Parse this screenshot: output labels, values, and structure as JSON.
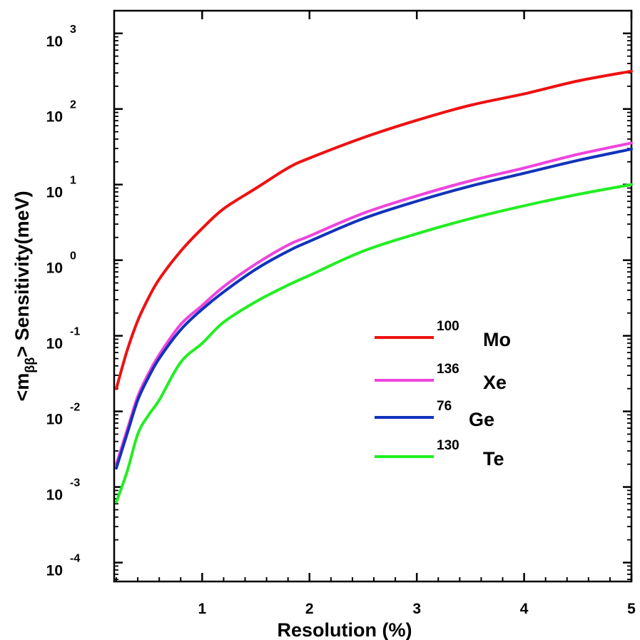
{
  "chart_data": {
    "type": "line",
    "xlabel": "Resolution (%)",
    "ylabel": {
      "prefix": "<m",
      "subscript": "ββ",
      "suffix": "> Sensitivity(meV)"
    },
    "xlim": [
      0.18,
      5.0
    ],
    "ylim_log10": [
      -4.25,
      3.3
    ],
    "y_scale": "log",
    "x_ticks": [
      {
        "value": 1,
        "label": "1"
      },
      {
        "value": 2,
        "label": "2"
      },
      {
        "value": 3,
        "label": "3"
      },
      {
        "value": 4,
        "label": "4"
      },
      {
        "value": 5,
        "label": "5"
      }
    ],
    "y_ticks": [
      {
        "exp": -4,
        "base": "10",
        "sup": "-4"
      },
      {
        "exp": -3,
        "base": "10",
        "sup": "-3"
      },
      {
        "exp": -2,
        "base": "10",
        "sup": "-2"
      },
      {
        "exp": -1,
        "base": "10",
        "sup": "-1"
      },
      {
        "exp": 0,
        "base": "10",
        "sup": "0"
      },
      {
        "exp": 1,
        "base": "10",
        "sup": "1"
      },
      {
        "exp": 2,
        "base": "10",
        "sup": "2"
      },
      {
        "exp": 3,
        "base": "10",
        "sup": "3"
      }
    ],
    "grid": false,
    "legend_placement": "lower-right",
    "series": [
      {
        "name": "Mo",
        "mass": "100",
        "color": "#ee1111",
        "points": [
          [
            0.2,
            -1.7
          ],
          [
            0.3,
            -1.2
          ],
          [
            0.4,
            -0.8
          ],
          [
            0.5,
            -0.5
          ],
          [
            0.6,
            -0.25
          ],
          [
            0.8,
            0.12
          ],
          [
            1.0,
            0.42
          ],
          [
            1.2,
            0.68
          ],
          [
            1.5,
            0.95
          ],
          [
            1.8,
            1.22
          ],
          [
            2.0,
            1.35
          ],
          [
            2.5,
            1.62
          ],
          [
            3.0,
            1.85
          ],
          [
            3.5,
            2.05
          ],
          [
            4.0,
            2.2
          ],
          [
            4.5,
            2.37
          ],
          [
            5.0,
            2.5
          ]
        ]
      },
      {
        "name": "Xe",
        "mass": "136",
        "color": "#ee44dd",
        "points": [
          [
            0.2,
            -2.7
          ],
          [
            0.3,
            -2.25
          ],
          [
            0.4,
            -1.8
          ],
          [
            0.5,
            -1.5
          ],
          [
            0.6,
            -1.25
          ],
          [
            0.8,
            -0.85
          ],
          [
            1.0,
            -0.6
          ],
          [
            1.2,
            -0.35
          ],
          [
            1.5,
            -0.05
          ],
          [
            1.8,
            0.2
          ],
          [
            2.0,
            0.32
          ],
          [
            2.5,
            0.62
          ],
          [
            3.0,
            0.85
          ],
          [
            3.5,
            1.05
          ],
          [
            4.0,
            1.22
          ],
          [
            4.5,
            1.4
          ],
          [
            5.0,
            1.55
          ]
        ]
      },
      {
        "name": "Ge",
        "mass": "76",
        "color": "#1133bb",
        "points": [
          [
            0.2,
            -2.75
          ],
          [
            0.3,
            -2.3
          ],
          [
            0.4,
            -1.85
          ],
          [
            0.5,
            -1.55
          ],
          [
            0.6,
            -1.3
          ],
          [
            0.8,
            -0.92
          ],
          [
            1.0,
            -0.65
          ],
          [
            1.2,
            -0.42
          ],
          [
            1.5,
            -0.12
          ],
          [
            1.8,
            0.12
          ],
          [
            2.0,
            0.25
          ],
          [
            2.5,
            0.55
          ],
          [
            3.0,
            0.78
          ],
          [
            3.5,
            0.98
          ],
          [
            4.0,
            1.15
          ],
          [
            4.5,
            1.32
          ],
          [
            5.0,
            1.47
          ]
        ]
      },
      {
        "name": "Te",
        "mass": "130",
        "color": "#22ee22",
        "points": [
          [
            0.2,
            -3.2
          ],
          [
            0.3,
            -2.8
          ],
          [
            0.4,
            -2.3
          ],
          [
            0.5,
            -2.05
          ],
          [
            0.6,
            -1.85
          ],
          [
            0.8,
            -1.35
          ],
          [
            1.0,
            -1.1
          ],
          [
            1.2,
            -0.82
          ],
          [
            1.5,
            -0.55
          ],
          [
            1.8,
            -0.33
          ],
          [
            2.0,
            -0.2
          ],
          [
            2.5,
            0.12
          ],
          [
            3.0,
            0.35
          ],
          [
            3.5,
            0.55
          ],
          [
            4.0,
            0.72
          ],
          [
            4.5,
            0.87
          ],
          [
            5.0,
            1.0
          ]
        ]
      }
    ]
  }
}
